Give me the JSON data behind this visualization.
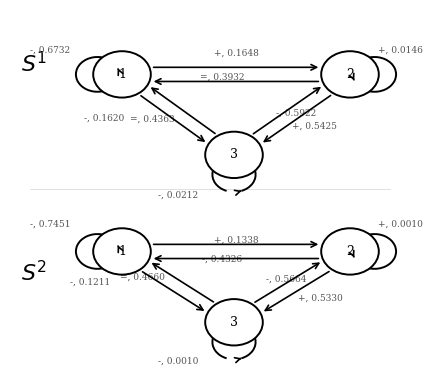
{
  "s1_label": "$S^1$",
  "s2_label": "$S^2$",
  "s1_nodes": {
    "1": [
      0.28,
      0.82
    ],
    "2": [
      0.85,
      0.82
    ],
    "3": [
      0.56,
      0.57
    ]
  },
  "s2_nodes": {
    "1": [
      0.28,
      0.27
    ],
    "2": [
      0.85,
      0.27
    ],
    "3": [
      0.56,
      0.05
    ]
  },
  "node_r": 0.072,
  "s1_self_labels": {
    "1": [
      0.1,
      0.895,
      "-, 0.6732"
    ],
    "2": [
      0.975,
      0.895,
      "+, 0.0146"
    ],
    "3": [
      0.42,
      0.445,
      "-, 0.0212"
    ]
  },
  "s2_self_labels": {
    "1": [
      0.1,
      0.355,
      "-, 0.7451"
    ],
    "2": [
      0.975,
      0.355,
      "+, 0.0010"
    ],
    "3": [
      0.42,
      -0.07,
      "-, 0.0010"
    ]
  },
  "s1_edge_labels": {
    "1to2_fwd": [
      0.565,
      0.885,
      "+, 0.1648"
    ],
    "2to1_bwd": [
      0.53,
      0.81,
      "=, 0.3932"
    ],
    "1to3_fwd": [
      0.235,
      0.685,
      "-, 0.1620"
    ],
    "3to1_bwd": [
      0.355,
      0.68,
      "=, 0.4363"
    ],
    "2to3_fwd": [
      0.715,
      0.7,
      "-, 0.5922"
    ],
    "3to2_bwd": [
      0.76,
      0.66,
      "+, 0.5425"
    ]
  },
  "s2_edge_labels": {
    "1to2_fwd": [
      0.565,
      0.305,
      "+, 0.1338"
    ],
    "2to1_bwd": [
      0.53,
      0.245,
      "-, 0.4326"
    ],
    "1to3_fwd": [
      0.2,
      0.175,
      "-, 0.1211"
    ],
    "3to1_bwd": [
      0.33,
      0.19,
      "=, 0.4660"
    ],
    "2to3_fwd": [
      0.69,
      0.185,
      "-, 0.5664"
    ],
    "3to2_bwd": [
      0.775,
      0.125,
      "+, 0.5330"
    ]
  }
}
